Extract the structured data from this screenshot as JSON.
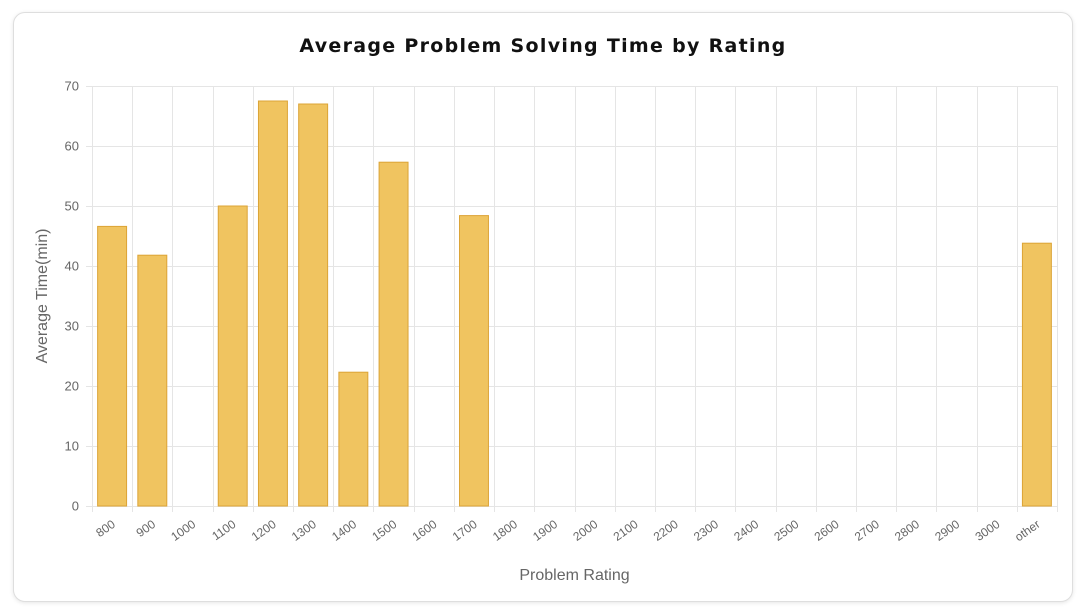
{
  "chart_data": {
    "type": "bar",
    "title": "Average Problem Solving Time by Rating",
    "xlabel": "Problem Rating",
    "ylabel": "Average Time(min)",
    "categories": [
      "800",
      "900",
      "1000",
      "1100",
      "1200",
      "1300",
      "1400",
      "1500",
      "1600",
      "1700",
      "1800",
      "1900",
      "2000",
      "2100",
      "2200",
      "2300",
      "2400",
      "2500",
      "2600",
      "2700",
      "2800",
      "2900",
      "3000",
      "other"
    ],
    "values": [
      46.6,
      41.8,
      0,
      50.0,
      67.5,
      67.0,
      22.3,
      57.3,
      0,
      48.4,
      0,
      0,
      0,
      0,
      0,
      0,
      0,
      0,
      0,
      0,
      0,
      0,
      0,
      43.8
    ],
    "ylim": [
      0,
      70
    ],
    "yticks": [
      0,
      10,
      20,
      30,
      40,
      50,
      60,
      70
    ],
    "grid": true,
    "legend": "none",
    "bar_color": "#f0c460",
    "bar_border_color": "#dca436",
    "grid_color": "#e5e5e5"
  }
}
